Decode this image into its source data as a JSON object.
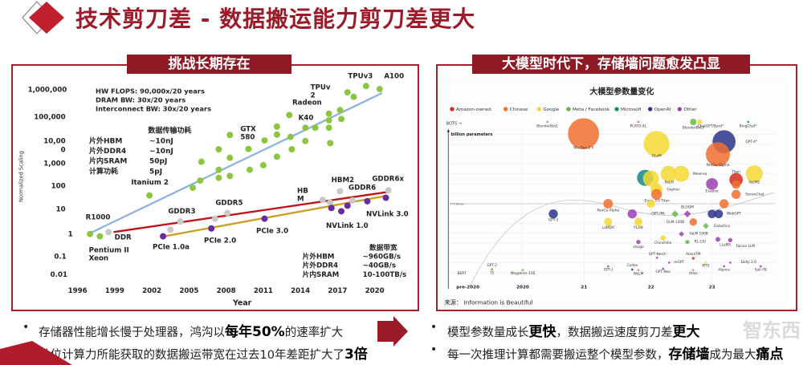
{
  "header": {
    "title": "技术剪刀差 - 数据搬运能力剪刀差更大",
    "accent": "#9b1b2a"
  },
  "left_panel": {
    "tab": "挑战长期存在"
  },
  "right_panel": {
    "tab": "大模型时代下，存储墙问题愈发凸显"
  },
  "chart_data": [
    {
      "type": "scatter",
      "ylabel": "Normalized Scaling",
      "xlabel": "Year",
      "yscale": "log",
      "ylim": [
        0.01,
        1000000
      ],
      "xlim": [
        1996,
        2021
      ],
      "x_ticks": [
        "1996",
        "1999",
        "2002",
        "2005",
        "2008",
        "2011",
        "2014",
        "2017",
        "2020"
      ],
      "y_ticks": [
        "1,000,000",
        "100,000",
        "10,00\n0",
        "1,000",
        "100",
        "10",
        "1",
        "0.1",
        "0.01"
      ],
      "notes": [
        "HW FLOPS: 90,000x/20  years",
        "DRAM BW:   30x/20 years",
        "Interconnect BW: 30x/20 years"
      ],
      "energy_table": {
        "title": "数据传输功耗",
        "rows": [
          [
            "片外HBM",
            "~10nJ"
          ],
          [
            "片外DDR4",
            "~10nJ"
          ],
          [
            "片内SRAM",
            "50pJ"
          ],
          [
            "计算功耗",
            "5pJ"
          ]
        ]
      },
      "bandwidth_table": {
        "title": "数据带宽",
        "rows": [
          [
            "片外HBM",
            "~960GB/s"
          ],
          [
            "片外DDR4",
            "~40GB/s"
          ],
          [
            "片内SRAM",
            "10-100TB/s"
          ]
        ]
      },
      "series": [
        {
          "kind": "compute",
          "color": "#8cc63f",
          "trend_color": "#8fb3e0",
          "trend": [
            [
              1997.0,
              1.08
            ],
            [
              2020.6,
              720000
            ]
          ],
          "points": [
            [
              1997.0,
              1
            ],
            [
              1997.8,
              0.8
            ],
            [
              2001.8,
              40
            ],
            [
              2005.3,
              83
            ],
            [
              2005.9,
              166
            ],
            [
              2006.0,
              1000
            ],
            [
              2007.4,
              3300
            ],
            [
              2007.4,
              464
            ],
            [
              2007.4,
              215
            ],
            [
              2008.3,
              13000
            ],
            [
              2008.3,
              1470
            ],
            [
              2008.3,
              257
            ],
            [
              2009.8,
              3400
            ],
            [
              2009.9,
              464
            ],
            [
              2011.1,
              7700
            ],
            [
              2011.0,
              720
            ],
            [
              2012.1,
              29000
            ],
            [
              2012.1,
              13500
            ],
            [
              2012.1,
              1630
            ],
            [
              2013.1,
              88000
            ],
            [
              2013.2,
              10800
            ],
            [
              2013.3,
              3300
            ],
            [
              2014.4,
              26000
            ],
            [
              2014.4,
              7300
            ],
            [
              2015.2,
              26000
            ],
            [
              2016.3,
              100000
            ],
            [
              2016.3,
              53000
            ],
            [
              2016.3,
              26000
            ],
            [
              2016.4,
              6000
            ],
            [
              2017.2,
              140000
            ],
            [
              2017.3,
              60000
            ],
            [
              2017.8,
              770000
            ],
            [
              2018.3,
              500000
            ],
            [
              2019.3,
              1400000
            ],
            [
              2020.4,
              1050000
            ]
          ]
        },
        {
          "kind": "dram",
          "color": "#c8c8c8",
          "trend_color": "#c0141c",
          "trend": [
            [
              1998.9,
              1.2
            ],
            [
              2021.0,
              55
            ]
          ],
          "points": [
            [
              1998.5,
              1.2
            ],
            [
              2003.5,
              1.5
            ],
            [
              2004.3,
              3.3
            ],
            [
              2007.1,
              4.3
            ],
            [
              2008.1,
              7.4
            ],
            [
              2015.8,
              26
            ],
            [
              2016.4,
              20
            ],
            [
              2017.2,
              60
            ],
            [
              2018.2,
              25
            ],
            [
              2021.1,
              65
            ]
          ]
        },
        {
          "kind": "interconnect",
          "color": "#6a2aa0",
          "trend_color": "#c9a020",
          "trend": [
            [
              2003.0,
              0.8
            ],
            [
              2021.0,
              39
            ]
          ],
          "points": [
            [
              2002.9,
              0.8
            ],
            [
              2006.8,
              1.7
            ],
            [
              2011.1,
              4.3
            ],
            [
              2016.5,
              12
            ],
            [
              2017.3,
              8.8
            ],
            [
              2017.8,
              15
            ],
            [
              2019.4,
              23
            ],
            [
              2020.9,
              32
            ]
          ]
        }
      ],
      "annotations": [
        "TPUv3",
        "A100",
        "TPUv\n2",
        "Radeon",
        "K40",
        "GTX\n580",
        "Itanium 2",
        "R1000",
        "Pentium II\nXeon",
        "DDR",
        "GDDR3",
        "GDDR5",
        "HB\nM",
        "HBM2",
        "GDDR6",
        "GDDR6x",
        "PCIe 1.0a",
        "PCIe 2.0",
        "PCIe 3.0",
        "NVLink 1.0",
        "NVLink 3.0"
      ]
    },
    {
      "type": "scatter",
      "title": "大模型参数量变化",
      "ylabel": "billion parameters",
      "reference_line": "175 Billion",
      "bots_label": "BOTS →",
      "x_ticks": [
        "pre-2020",
        "2020",
        "21",
        "22",
        "23"
      ],
      "source": "来源：  Information is Beautiful",
      "legend": [
        {
          "name": "Amazon-owned",
          "color": "#d42a20"
        },
        {
          "name": "Chinese",
          "color": "#f07030"
        },
        {
          "name": "Google",
          "color": "#f5d832"
        },
        {
          "name": "Meta / Facebook",
          "color": "#62b846"
        },
        {
          "name": "Microsoft",
          "color": "#138a86"
        },
        {
          "name": "OpenAI",
          "color": "#2a3588"
        },
        {
          "name": "Other",
          "color": "#9a3fb0"
        }
      ],
      "models": [
        {
          "name": "Wu Dao 2.0",
          "org": "Chinese"
        },
        {
          "name": "GLaM",
          "org": "Google"
        },
        {
          "name": "GPT-4*",
          "org": "OpenAI"
        },
        {
          "name": "PanGu-Sigma",
          "org": "Chinese"
        },
        {
          "name": "",
          "org": "Microsoft"
        },
        {
          "name": "",
          "org": "Google"
        },
        {
          "name": "PaLM",
          "org": "Google"
        },
        {
          "name": "Minerva",
          "org": "Google"
        },
        {
          "name": "Titan",
          "org": "Amazon-owned"
        },
        {
          "name": "",
          "org": "Chinese"
        },
        {
          "name": "PaLM2",
          "org": "Google"
        },
        {
          "name": "Exaone",
          "org": "Other"
        },
        {
          "name": "Gopher",
          "org": "Google"
        },
        {
          "name": "Ernie 3.0 Titan",
          "org": "Chinese"
        },
        {
          "name": "SenseChat",
          "org": "Chinese"
        },
        {
          "name": "",
          "org": "Google"
        },
        {
          "name": "PanGu-Alpha",
          "org": "Chinese"
        },
        {
          "name": "",
          "org": "Chinese"
        },
        {
          "name": "GPT-3",
          "org": "OpenAI"
        },
        {
          "name": "",
          "org": "Other"
        },
        {
          "name": "OPT-IML",
          "org": "Meta / Facebook"
        },
        {
          "name": "BLOOM",
          "org": "Other"
        },
        {
          "name": "WebGPT",
          "org": "OpenAI"
        },
        {
          "name": "",
          "org": "OpenAI"
        },
        {
          "name": "LaMDA",
          "org": "Google"
        },
        {
          "name": "FLAN",
          "org": "Google"
        },
        {
          "name": "GLM-130B",
          "org": "Chinese"
        },
        {
          "name": "Galactica",
          "org": "Meta / Facebook"
        },
        {
          "name": "YaLM 100B",
          "org": "Other"
        },
        {
          "name": "Chinchilla",
          "org": "Google"
        },
        {
          "name": "xlarge",
          "org": "Other"
        },
        {
          "name": "RL-CAI",
          "org": "Meta / Facebook"
        },
        {
          "name": "LLaMA",
          "org": "Other"
        },
        {
          "name": "Falcon LLM",
          "org": "Other"
        },
        {
          "name": "GPT-NeoX",
          "org": "Other"
        },
        {
          "name": "AlexaTM",
          "org": "Amazon-owned"
        },
        {
          "name": "mGPT",
          "org": "Other"
        },
        {
          "name": "Dolly 2.0",
          "org": "Other"
        },
        {
          "name": "Codex",
          "org": "OpenAI"
        },
        {
          "name": "GPT-J",
          "org": "Other"
        },
        {
          "name": "WeLM",
          "org": "Chinese"
        },
        {
          "name": "GPT Neo",
          "org": "Other"
        },
        {
          "name": "Atlas",
          "org": "Meta / Facebook"
        },
        {
          "name": "MT5",
          "org": "Google"
        },
        {
          "name": "Alpaca",
          "org": "Other"
        },
        {
          "name": "Sail-7B",
          "org": "Other"
        },
        {
          "name": "GPT-2",
          "org": "OpenAI"
        },
        {
          "name": "T5",
          "org": "Google"
        },
        {
          "name": "BERT",
          "org": "Google"
        },
        {
          "name": "Megatron-11B",
          "org": "Meta / Facebook"
        },
        {
          "name": "BlenderBot1",
          "org": "Meta / Facebook"
        },
        {
          "name": "PLATO-XL",
          "org": "Chinese"
        },
        {
          "name": "BlenderBot3",
          "org": "Meta / Facebook"
        },
        {
          "name": "ChatGPT/Bard*",
          "org": "Google"
        },
        {
          "name": "BingChat*",
          "org": "Microsoft"
        }
      ]
    }
  ],
  "bullets_left": [
    {
      "text": "存储器性能增长慢于处理器，鸿沟以",
      "bold": "每年50%",
      "tail": "的速率扩大"
    },
    {
      "text": "单位计算力所能获取的数据搬运带宽在过去10年差距扩大了",
      "bold": "3倍",
      "tail": ""
    }
  ],
  "bullets_right": [
    {
      "text": "模型参数量成长",
      "bold": "更快",
      "tail": "，数据搬运速度剪刀差",
      "bold2": "更大"
    },
    {
      "text": "每一次推理计算都需要搬运整个模型参数，",
      "bold": "存储墙",
      "tail": "成为最大",
      "bold2": "痛点"
    }
  ],
  "watermark": "智东西"
}
